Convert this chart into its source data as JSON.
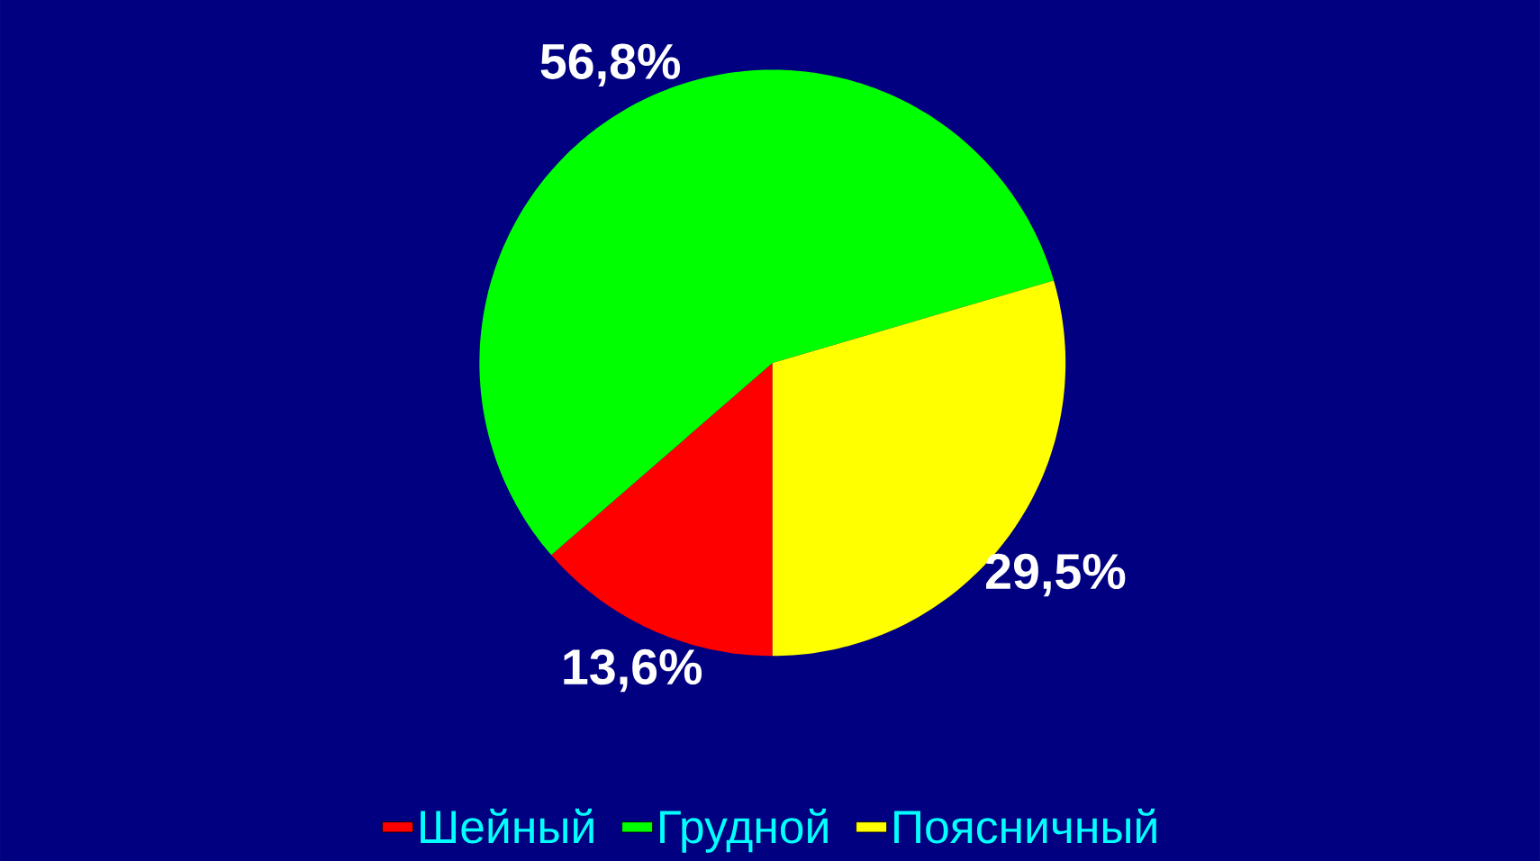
{
  "chart_data": {
    "type": "pie",
    "categories": [
      "Шейный",
      "Грудной",
      "Поясничный"
    ],
    "values": [
      13.6,
      56.8,
      29.5
    ],
    "colors": [
      "#ff0000",
      "#00ff00",
      "#ffff00"
    ],
    "value_labels": [
      "13,6%",
      "56,8%",
      "29,5%"
    ],
    "legend": "bottom"
  }
}
